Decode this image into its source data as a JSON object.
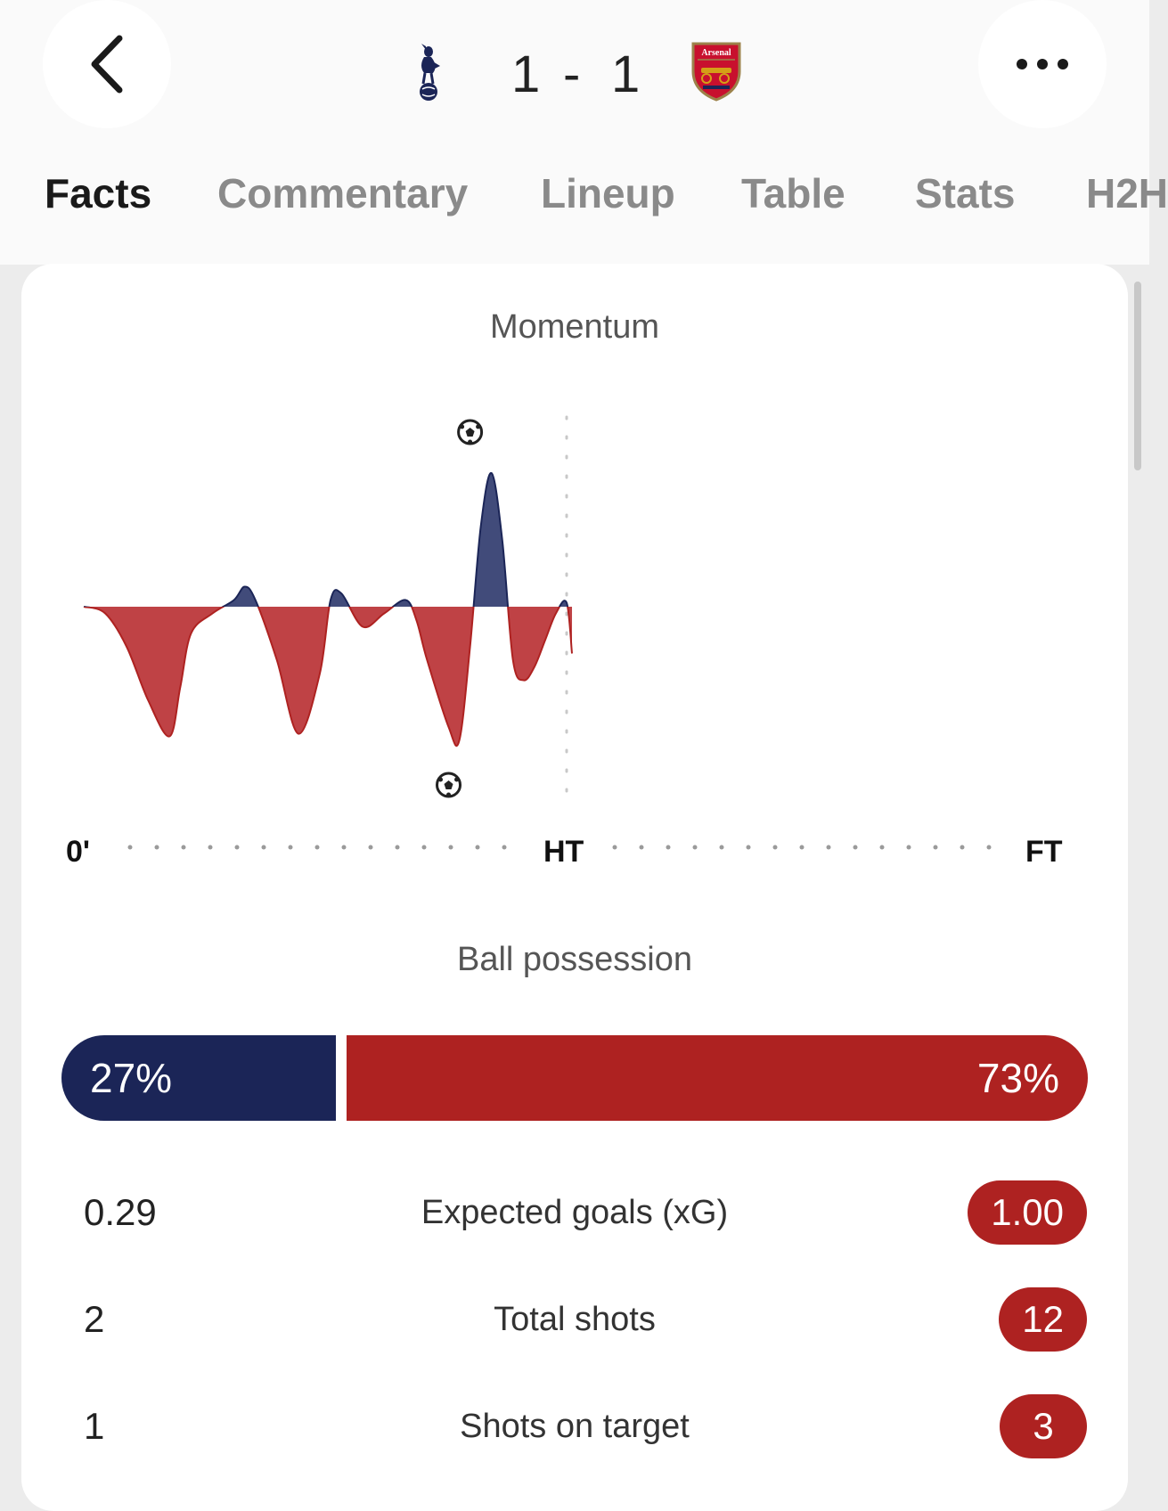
{
  "colors": {
    "home": "#1b2557",
    "home_momentum": "#414b7a",
    "away": "#ae2221",
    "away_momentum": "#bf4245"
  },
  "header": {
    "back_icon": "chevron-left-icon",
    "more_icon": "more-horizontal-icon",
    "home_score": "1",
    "separator": "-",
    "away_score": "1",
    "home_crest": "tottenham-crest",
    "away_crest": "arsenal-crest",
    "away_crest_text": "Arsenal"
  },
  "tabs": [
    {
      "label": "Facts",
      "active": true
    },
    {
      "label": "Commentary",
      "active": false
    },
    {
      "label": "Lineup",
      "active": false
    },
    {
      "label": "Table",
      "active": false
    },
    {
      "label": "Stats",
      "active": false
    },
    {
      "label": "H2H",
      "active": false
    }
  ],
  "momentum": {
    "title": "Momentum",
    "axis": {
      "start": "0'",
      "half": "HT",
      "end": "FT"
    },
    "goal_icon": "football-icon"
  },
  "chart_data": {
    "type": "area",
    "title": "Momentum",
    "x_ticks": [
      "0'",
      "HT",
      "FT"
    ],
    "x_range_minutes": [
      0,
      90
    ],
    "series": [
      {
        "minutes": [
          0,
          2,
          4,
          6,
          8,
          9,
          10,
          12,
          14,
          15,
          16,
          18,
          20,
          22,
          23,
          24,
          26,
          28,
          30,
          31,
          32,
          34,
          35,
          36,
          37,
          38,
          39,
          40,
          41,
          42,
          43,
          44,
          45,
          45.5
        ],
        "values": [
          0,
          -0.05,
          -0.3,
          -0.7,
          -0.97,
          -0.6,
          -0.2,
          -0.05,
          0.05,
          0.15,
          0.05,
          -0.4,
          -0.95,
          -0.5,
          0.05,
          0.1,
          -0.15,
          -0.05,
          0.05,
          -0.1,
          -0.4,
          -0.9,
          -1.0,
          -0.3,
          0.6,
          1.0,
          0.5,
          -0.4,
          -0.55,
          -0.45,
          -0.25,
          -0.05,
          0.03,
          -0.35
        ]
      }
    ],
    "goals": [
      {
        "minute": 34,
        "team": "away"
      },
      {
        "minute": 36,
        "team": "home"
      }
    ],
    "legend": "none"
  },
  "possession": {
    "title": "Ball possession",
    "home_label": "27%",
    "away_label": "73%",
    "home_value": 27,
    "away_value": 73
  },
  "stats": [
    {
      "label": "Expected goals (xG)",
      "home": "0.29",
      "away": "1.00"
    },
    {
      "label": "Total shots",
      "home": "2",
      "away": "12"
    },
    {
      "label": "Shots on target",
      "home": "1",
      "away": "3"
    }
  ]
}
